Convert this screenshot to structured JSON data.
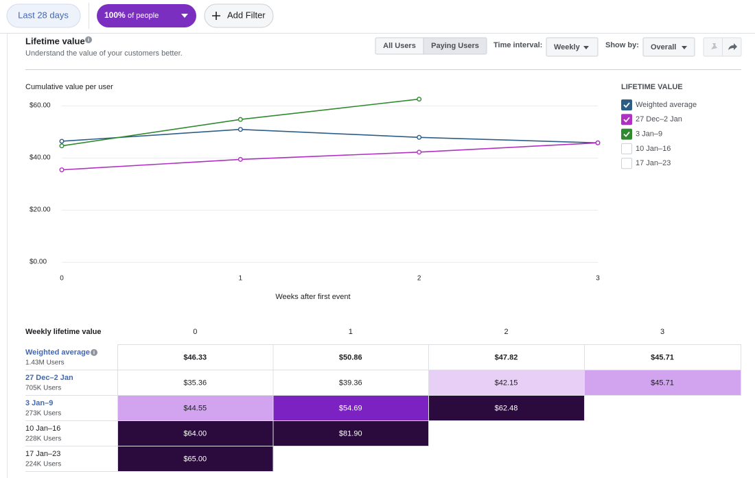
{
  "toolbar": {
    "date_range": "Last 28 days",
    "audience": "100%",
    "audience_suffix": "of people",
    "add_filter": "Add Filter"
  },
  "panel": {
    "title": "Lifetime value",
    "subtitle": "Understand the value of your customers better.",
    "tabs": [
      "All Users",
      "Paying Users"
    ],
    "time_interval_label": "Time interval:",
    "time_interval": "Weekly",
    "show_by_label": "Show by:",
    "show_by": "Overall"
  },
  "chart_data": {
    "type": "line",
    "y_label": "Cumulative value per user",
    "x_label": "Weeks after first event",
    "legend_title": "LIFETIME VALUE",
    "x": [
      0,
      1,
      2,
      3
    ],
    "xlim": [
      0,
      3
    ],
    "xticks": [
      0,
      1,
      2,
      3
    ],
    "ylim": [
      0,
      64
    ],
    "yticks": [
      {
        "value": 0,
        "label": "$0.00"
      },
      {
        "value": 20,
        "label": "$20.00"
      },
      {
        "value": 40,
        "label": "$40.00"
      },
      {
        "value": 60,
        "label": "$60.00"
      }
    ],
    "grid": true,
    "series": [
      {
        "name": "Weighted average",
        "color": "#2c5d87",
        "visible": true,
        "values": [
          46.33,
          50.86,
          47.82,
          45.71
        ],
        "value_labels": [
          "$46.33",
          "$50.86",
          "$47.82",
          "$45.71"
        ]
      },
      {
        "name": "27 Dec–2 Jan",
        "color": "#b22fc4",
        "visible": true,
        "values": [
          35.36,
          39.36,
          42.15,
          45.71
        ],
        "value_labels": [
          "$35.36",
          "$39.36",
          "$42.15",
          "$45.71"
        ]
      },
      {
        "name": "3 Jan–9",
        "color": "#2f8a2f",
        "visible": true,
        "values": [
          44.55,
          54.69,
          62.48,
          null
        ],
        "value_labels": [
          "$44.55",
          "$54.69",
          "$62.48",
          null
        ]
      },
      {
        "name": "10 Jan–16",
        "color": "#7b5ea7",
        "visible": false,
        "values": [
          64.0,
          81.9,
          null,
          null
        ],
        "value_labels": [
          "$64.00",
          "$81.90",
          null,
          null
        ]
      },
      {
        "name": "17 Jan–23",
        "color": "#8c6d3a",
        "visible": false,
        "values": [
          65.0,
          null,
          null,
          null
        ],
        "value_labels": [
          "$65.00",
          null,
          null,
          null
        ]
      }
    ]
  },
  "table": {
    "title": "Weekly lifetime value",
    "users": [
      "1.43M Users",
      "705K Users",
      "273K Users",
      "228K Users",
      "224K Users"
    ]
  }
}
